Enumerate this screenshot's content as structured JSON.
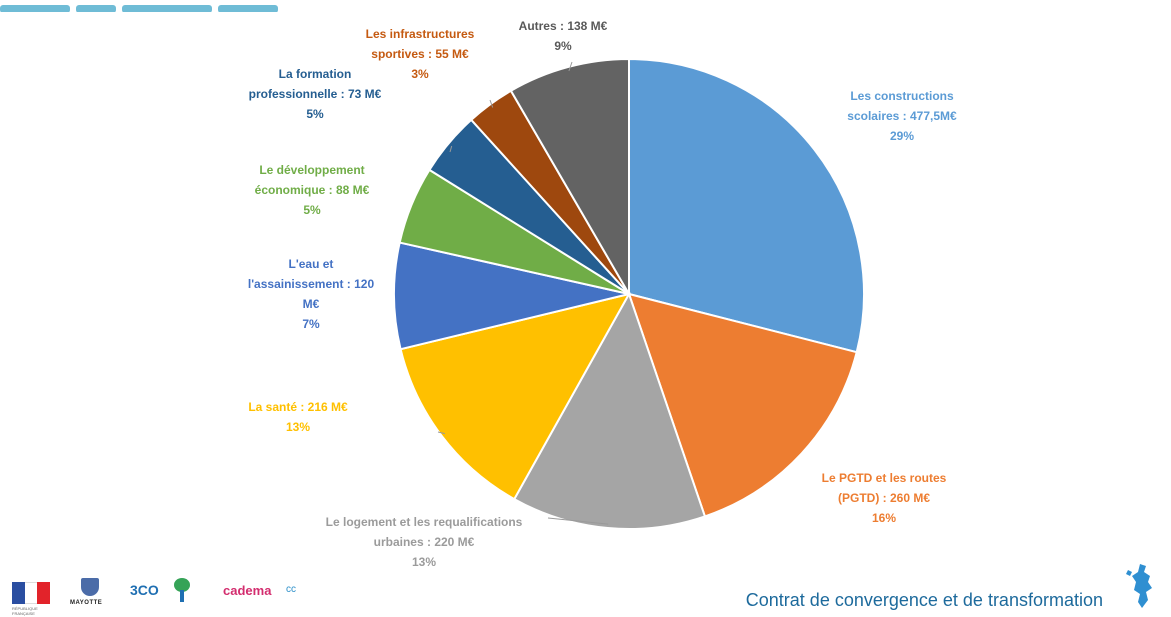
{
  "chart_data": {
    "type": "pie",
    "unit": "M€",
    "slices": [
      {
        "name": "Les constructions\nscolaires : 477,5M€",
        "value": 477.5,
        "pct": "29%",
        "color": "#5b9bd5",
        "label_color": "#5b9bd5"
      },
      {
        "name": "Le PGTD et les routes\n(PGTD) : 260 M€",
        "value": 260,
        "pct": "16%",
        "color": "#ed7d31",
        "label_color": "#ed7d31"
      },
      {
        "name": "Le logement et les requalifications\nurbaines : 220 M€",
        "value": 220,
        "pct": "13%",
        "color": "#a5a5a5",
        "label_color": "#9b9b9b"
      },
      {
        "name": "La santé : 216 M€",
        "value": 216,
        "pct": "13%",
        "color": "#ffc000",
        "label_color": "#ffc000"
      },
      {
        "name": "L'eau et\nl'assainissement : 120\nM€",
        "value": 120,
        "pct": "7%",
        "color": "#4472c4",
        "label_color": "#4472c4"
      },
      {
        "name": "Le développement\néconomique : 88 M€",
        "value": 88,
        "pct": "5%",
        "color": "#70ad47",
        "label_color": "#70ad47"
      },
      {
        "name": "La formation\nprofessionnelle : 73 M€",
        "value": 73,
        "pct": "5%",
        "color": "#255e91",
        "label_color": "#255e91"
      },
      {
        "name": "Les infrastructures\nsportives : 55 M€",
        "value": 55,
        "pct": "3%",
        "color": "#9e480e",
        "label_color": "#c55a11"
      },
      {
        "name": "Autres : 138 M€",
        "value": 138,
        "pct": "9%",
        "color": "#636363",
        "label_color": "#595959"
      }
    ]
  },
  "footer": {
    "title": "Contrat de convergence et de transformation",
    "logos": {
      "crest_caption": "MAYOTTE",
      "t3co": "3CO",
      "cadema": "cadema",
      "carib": "cc",
      "flag_caption": "RÉPUBLIQUE FRANÇAISE"
    }
  }
}
